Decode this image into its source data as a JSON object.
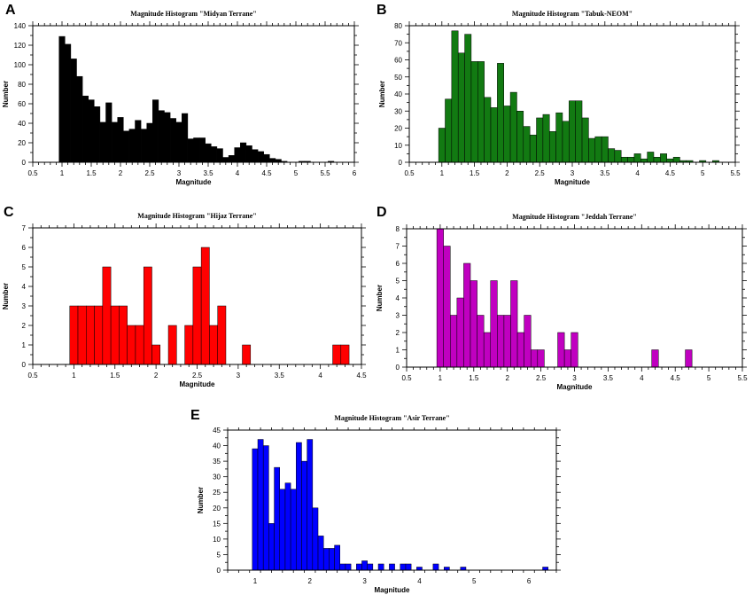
{
  "chart_data": [
    {
      "type": "bar",
      "panel_letter": "A",
      "title": "Magnitude Histogram \"Midyan Terrane\"",
      "xlabel": "Magnitude",
      "ylabel": "Number",
      "xlim": [
        0.5,
        6
      ],
      "ylim": [
        0,
        140
      ],
      "xticks": [
        0.5,
        1,
        1.5,
        2,
        2.5,
        3,
        3.5,
        4,
        4.5,
        5,
        5.5,
        6
      ],
      "xtick_labels": [
        "0.5",
        "1",
        "1.5",
        "2",
        "2.5",
        "3",
        "3.5",
        "4",
        "4.5",
        "5",
        "5.5",
        "6"
      ],
      "yticks": [
        0,
        20,
        40,
        60,
        80,
        100,
        120,
        140
      ],
      "ytick_labels": [
        "0",
        "20",
        "40",
        "60",
        "80",
        "100",
        "120",
        "140"
      ],
      "bin_start": 0.95,
      "bin_width": 0.1,
      "values": [
        129,
        121,
        106,
        88,
        68,
        64,
        57,
        41,
        61,
        41,
        46,
        32,
        34,
        43,
        34,
        40,
        64,
        53,
        51,
        45,
        41,
        50,
        24,
        25,
        25,
        19,
        16,
        14,
        5,
        7,
        15,
        20,
        17,
        13,
        11,
        8,
        4,
        3,
        1,
        0,
        0,
        1,
        1,
        0,
        0,
        0,
        1,
        0
      ],
      "color": "#000000"
    },
    {
      "type": "bar",
      "panel_letter": "B",
      "title": "Magnitude Histogram \"Tabuk-NEOM\"",
      "xlabel": "Magnitude",
      "ylabel": "Number",
      "xlim": [
        0.5,
        5.5
      ],
      "ylim": [
        0,
        80
      ],
      "xticks": [
        0.5,
        1,
        1.5,
        2,
        2.5,
        3,
        3.5,
        4,
        4.5,
        5,
        5.5
      ],
      "xtick_labels": [
        "0.5",
        "1",
        "1.5",
        "2",
        "2.5",
        "3",
        "3.5",
        "4",
        "4.5",
        "5",
        "5.5"
      ],
      "yticks": [
        0,
        10,
        20,
        30,
        40,
        50,
        60,
        70,
        80
      ],
      "ytick_labels": [
        "0",
        "10",
        "20",
        "30",
        "40",
        "50",
        "60",
        "70",
        "80"
      ],
      "bin_start": 0.95,
      "bin_width": 0.1,
      "values": [
        20,
        37,
        77,
        64,
        75,
        59,
        59,
        38,
        32,
        58,
        33,
        41,
        30,
        21,
        16,
        26,
        28,
        18,
        29,
        24,
        36,
        36,
        26,
        14,
        15,
        15,
        8,
        7,
        3,
        3,
        5,
        2,
        6,
        3,
        5,
        2,
        3,
        1,
        1,
        0,
        1,
        0,
        1
      ],
      "color": "#127a12"
    },
    {
      "type": "bar",
      "panel_letter": "C",
      "title": "Magnitude Histogram \"Hijaz Terrane\"",
      "xlabel": "Magnitude",
      "ylabel": "Number",
      "xlim": [
        0.5,
        4.5
      ],
      "ylim": [
        0,
        7
      ],
      "xticks": [
        0.5,
        1,
        1.5,
        2,
        2.5,
        3,
        3.5,
        4,
        4.5
      ],
      "xtick_labels": [
        "0.5",
        "1",
        "1.5",
        "2",
        "2.5",
        "3",
        "3.5",
        "4",
        "4.5"
      ],
      "yticks": [
        0,
        1,
        2,
        3,
        4,
        5,
        6,
        7
      ],
      "ytick_labels": [
        "0",
        "1",
        "2",
        "3",
        "4",
        "5",
        "6",
        "7"
      ],
      "bin_start": 0.95,
      "bin_width": 0.1,
      "values": [
        3,
        3,
        3,
        3,
        5,
        3,
        3,
        2,
        2,
        5,
        1,
        0,
        2,
        0,
        2,
        5,
        6,
        2,
        3,
        0,
        0,
        1,
        0,
        0,
        0,
        0,
        0,
        0,
        0,
        0,
        0,
        0,
        1,
        1
      ],
      "color": "#ff0000"
    },
    {
      "type": "bar",
      "panel_letter": "D",
      "title": "Magnitude Histogram \"Jeddah Terrane\"",
      "xlabel": "Magnitude",
      "ylabel": "Number",
      "xlim": [
        0.5,
        5.5
      ],
      "ylim": [
        0,
        8
      ],
      "xticks": [
        0.5,
        1,
        1.5,
        2,
        2.5,
        3,
        3.5,
        4,
        4.5,
        5,
        5.5
      ],
      "xtick_labels": [
        "0.5",
        "1",
        "1.5",
        "2",
        "2.5",
        "3",
        "3.5",
        "4",
        "4.5",
        "5",
        "5.5"
      ],
      "yticks": [
        0,
        1,
        2,
        3,
        4,
        5,
        6,
        7,
        8
      ],
      "ytick_labels": [
        "0",
        "1",
        "2",
        "3",
        "4",
        "5",
        "6",
        "7",
        "8"
      ],
      "bin_start": 0.95,
      "bin_width": 0.1,
      "values": [
        8,
        7,
        3,
        4,
        6,
        5,
        3,
        2,
        5,
        3,
        3,
        5,
        2,
        3,
        1,
        1,
        0,
        0,
        2,
        1,
        2,
        0,
        0,
        0,
        0,
        0,
        0,
        0,
        0,
        0,
        0,
        0,
        1,
        0,
        0,
        0,
        0,
        1
      ],
      "color": "#c000c0"
    },
    {
      "type": "bar",
      "panel_letter": "E",
      "title": "Magnitude Histogram \"Asir Terrane\"",
      "xlabel": "Magnitude",
      "ylabel": "Number",
      "xlim": [
        0.5,
        6.5
      ],
      "ylim": [
        0,
        45
      ],
      "xticks": [
        1,
        2,
        3,
        4,
        5,
        6
      ],
      "xtick_labels": [
        "1",
        "2",
        "3",
        "4",
        "5",
        "6"
      ],
      "yticks": [
        0,
        5,
        10,
        15,
        20,
        25,
        30,
        35,
        40,
        45
      ],
      "ytick_labels": [
        "0",
        "5",
        "10",
        "15",
        "20",
        "25",
        "30",
        "35",
        "40",
        "45"
      ],
      "bin_start": 0.95,
      "bin_width": 0.1,
      "values": [
        39,
        42,
        40,
        15,
        33,
        26,
        28,
        26,
        41,
        35,
        42,
        20,
        11,
        7,
        7,
        8,
        2,
        2,
        0,
        2,
        3,
        2,
        0,
        2,
        0,
        2,
        0,
        2,
        2,
        0,
        1,
        0,
        0,
        2,
        0,
        1,
        0,
        0,
        1,
        0,
        0,
        0,
        0,
        0,
        0,
        0,
        0,
        0,
        0,
        0,
        0,
        0,
        0,
        1
      ],
      "color": "#0000ff"
    }
  ]
}
